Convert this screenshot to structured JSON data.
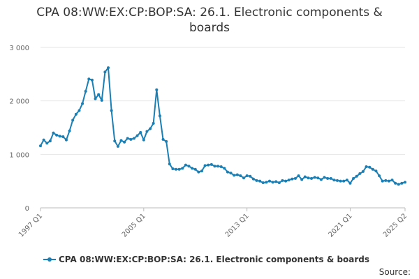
{
  "chart_data": {
    "type": "line",
    "title": "CPA 08:WW:EX:CP:BOP:SA: 26.1. Electronic components & boards",
    "xlabel": "",
    "ylabel": "",
    "ylim": [
      0,
      3000
    ],
    "yticks": [
      "0",
      "1 000",
      "2 000",
      "3 000"
    ],
    "ytick_values": [
      0,
      1000,
      2000,
      3000
    ],
    "xticks": [
      "1997 Q1",
      "2005 Q1",
      "2013 Q1",
      "2021 Q1",
      "2025 Q2"
    ],
    "xtick_indices": [
      0,
      32,
      64,
      96,
      113
    ],
    "grid": "horizontal",
    "legend_position": "bottom",
    "x_start": "1997 Q1",
    "x_end": "2025 Q2",
    "series": [
      {
        "name": "CPA 08:WW:EX:CP:BOP:SA: 26.1. Electronic components & boards",
        "color": "#1a7fb5",
        "values": [
          1160,
          1270,
          1210,
          1250,
          1400,
          1360,
          1340,
          1330,
          1270,
          1440,
          1640,
          1750,
          1820,
          1950,
          2180,
          2410,
          2390,
          2040,
          2120,
          2010,
          2540,
          2620,
          1820,
          1250,
          1150,
          1260,
          1230,
          1300,
          1280,
          1300,
          1350,
          1410,
          1270,
          1430,
          1480,
          1580,
          2210,
          1720,
          1280,
          1240,
          820,
          730,
          720,
          720,
          740,
          800,
          780,
          740,
          720,
          670,
          690,
          790,
          800,
          810,
          780,
          780,
          770,
          740,
          670,
          650,
          610,
          620,
          600,
          560,
          600,
          590,
          540,
          510,
          500,
          470,
          480,
          500,
          480,
          490,
          470,
          510,
          500,
          520,
          540,
          550,
          600,
          530,
          580,
          560,
          550,
          570,
          560,
          530,
          570,
          550,
          550,
          520,
          510,
          500,
          500,
          520,
          460,
          550,
          590,
          640,
          680,
          770,
          760,
          720,
          690,
          600,
          500,
          510,
          500,
          520,
          460,
          440,
          460,
          480
        ]
      }
    ]
  },
  "legend_label": "CPA 08:WW:EX:CP:BOP:SA: 26.1. Electronic components & boards",
  "source_label": "Source:"
}
